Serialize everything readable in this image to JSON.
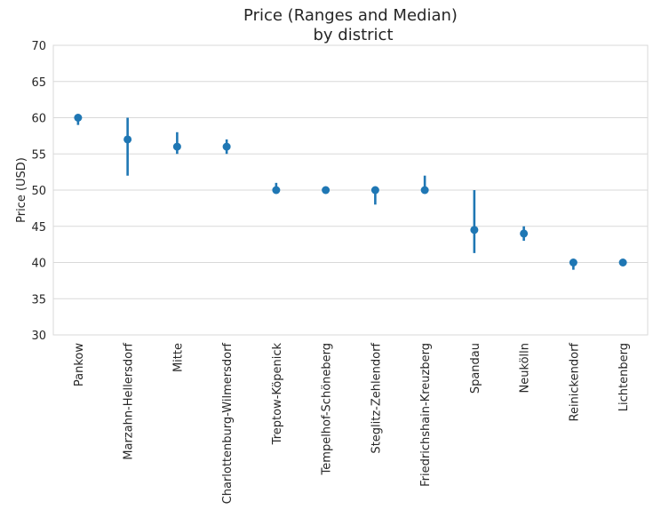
{
  "chart_data": {
    "type": "pointplot",
    "title_line1": "Price (Ranges and Median)",
    "title_line2": "by district",
    "xlabel": "",
    "ylabel": "Price (USD)",
    "ylim": [
      30,
      70
    ],
    "yticks": [
      30,
      35,
      40,
      45,
      50,
      55,
      60,
      65,
      70
    ],
    "grid": true,
    "color": "#1f77b4",
    "categories": [
      "Pankow",
      "Marzahn-Hellersdorf",
      "Mitte",
      "Charlottenburg-Wilmersdorf",
      "Treptow-Köpenick",
      "Tempelhof-Schöneberg",
      "Steglitz-Zehlendorf",
      "Friedrichshain-Kreuzberg",
      "Spandau",
      "Neukölln",
      "Reinickendorf",
      "Lichtenberg"
    ],
    "median": [
      60,
      57,
      56,
      56,
      50,
      50,
      50,
      50,
      44.5,
      44,
      40,
      40
    ],
    "low": [
      59,
      52,
      55,
      55,
      50,
      50,
      48,
      50,
      41.3,
      43,
      39,
      40
    ],
    "high": [
      60.5,
      60,
      58,
      57,
      51,
      50,
      50.5,
      52,
      50,
      45,
      40.5,
      40
    ]
  }
}
